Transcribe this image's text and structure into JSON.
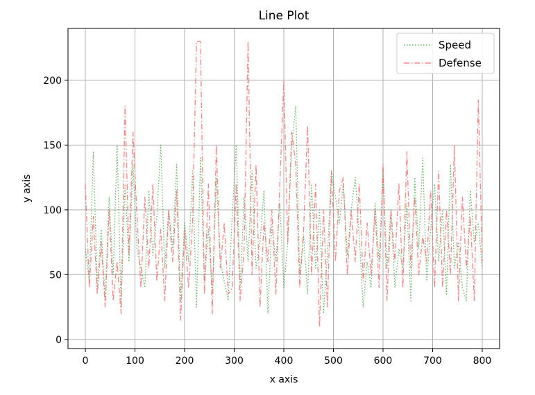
{
  "chart_data": {
    "type": "line",
    "title": "Line Plot",
    "xlabel": "x axis",
    "ylabel": "y axis",
    "xlim": [
      -35,
      835
    ],
    "ylim": [
      -7,
      240
    ],
    "x_ticks": [
      0,
      100,
      200,
      300,
      400,
      500,
      600,
      700,
      800
    ],
    "y_ticks": [
      0,
      50,
      100,
      150,
      200
    ],
    "grid": true,
    "legend": "top-right",
    "series": [
      {
        "name": "Speed",
        "style": "dotted",
        "color": "#2ca02c",
        "x": [
          0,
          8,
          16,
          24,
          32,
          40,
          48,
          56,
          64,
          72,
          80,
          88,
          96,
          104,
          112,
          120,
          128,
          136,
          144,
          152,
          160,
          168,
          176,
          184,
          192,
          200,
          208,
          216,
          224,
          232,
          240,
          248,
          256,
          264,
          272,
          280,
          288,
          296,
          304,
          312,
          320,
          328,
          336,
          344,
          352,
          360,
          368,
          376,
          384,
          392,
          400,
          408,
          416,
          424,
          432,
          440,
          448,
          456,
          464,
          472,
          480,
          488,
          496,
          504,
          512,
          520,
          528,
          536,
          544,
          552,
          560,
          568,
          576,
          584,
          592,
          600,
          608,
          616,
          624,
          632,
          640,
          648,
          656,
          664,
          672,
          680,
          688,
          696,
          704,
          712,
          720,
          728,
          736,
          744,
          752,
          760,
          768,
          776,
          784,
          792,
          800
        ],
        "y": [
          70,
          45,
          145,
          40,
          85,
          30,
          110,
          50,
          150,
          25,
          120,
          60,
          135,
          70,
          55,
          40,
          115,
          65,
          95,
          150,
          55,
          100,
          70,
          135,
          30,
          90,
          60,
          130,
          25,
          140,
          45,
          85,
          35,
          125,
          60,
          45,
          30,
          95,
          150,
          40,
          110,
          60,
          130,
          55,
          75,
          115,
          20,
          90,
          60,
          105,
          40,
          75,
          150,
          180,
          50,
          80,
          35,
          120,
          55,
          100,
          20,
          65,
          130,
          110,
          90,
          120,
          65,
          100,
          125,
          80,
          25,
          60,
          40,
          105,
          60,
          130,
          55,
          100,
          40,
          70,
          55,
          105,
          30,
          125,
          70,
          140,
          45,
          85,
          120,
          60,
          100,
          35,
          135,
          55,
          75,
          40,
          30,
          115,
          75,
          90,
          55
        ]
      },
      {
        "name": "Defense",
        "style": "dashdot",
        "color": "#ff6f6f",
        "x": [
          0,
          8,
          16,
          24,
          32,
          40,
          48,
          56,
          64,
          72,
          80,
          88,
          96,
          104,
          112,
          120,
          128,
          136,
          144,
          152,
          160,
          168,
          176,
          184,
          192,
          200,
          208,
          216,
          224,
          232,
          240,
          248,
          256,
          264,
          272,
          280,
          288,
          296,
          304,
          312,
          320,
          328,
          336,
          344,
          352,
          360,
          368,
          376,
          384,
          392,
          400,
          408,
          416,
          424,
          432,
          440,
          448,
          456,
          464,
          472,
          480,
          488,
          496,
          504,
          512,
          520,
          528,
          536,
          544,
          552,
          560,
          568,
          576,
          584,
          592,
          600,
          608,
          616,
          624,
          632,
          640,
          648,
          656,
          664,
          672,
          680,
          688,
          696,
          704,
          712,
          720,
          728,
          736,
          744,
          752,
          760,
          768,
          776,
          784,
          792,
          800
        ],
        "y": [
          120,
          40,
          95,
          35,
          75,
          25,
          100,
          30,
          60,
          20,
          180,
          65,
          160,
          95,
          40,
          110,
          55,
          120,
          45,
          85,
          30,
          100,
          60,
          115,
          15,
          85,
          40,
          90,
          230,
          230,
          35,
          120,
          20,
          150,
          55,
          90,
          35,
          40,
          120,
          30,
          70,
          230,
          50,
          135,
          25,
          90,
          60,
          100,
          35,
          120,
          200,
          75,
          160,
          135,
          40,
          85,
          165,
          50,
          120,
          10,
          100,
          25,
          130,
          60,
          115,
          125,
          50,
          100,
          60,
          120,
          45,
          90,
          50,
          100,
          40,
          135,
          30,
          100,
          60,
          120,
          40,
          145,
          55,
          110,
          50,
          80,
          60,
          115,
          40,
          130,
          40,
          100,
          50,
          150,
          30,
          110,
          55,
          95,
          30,
          185,
          60
        ]
      }
    ]
  }
}
